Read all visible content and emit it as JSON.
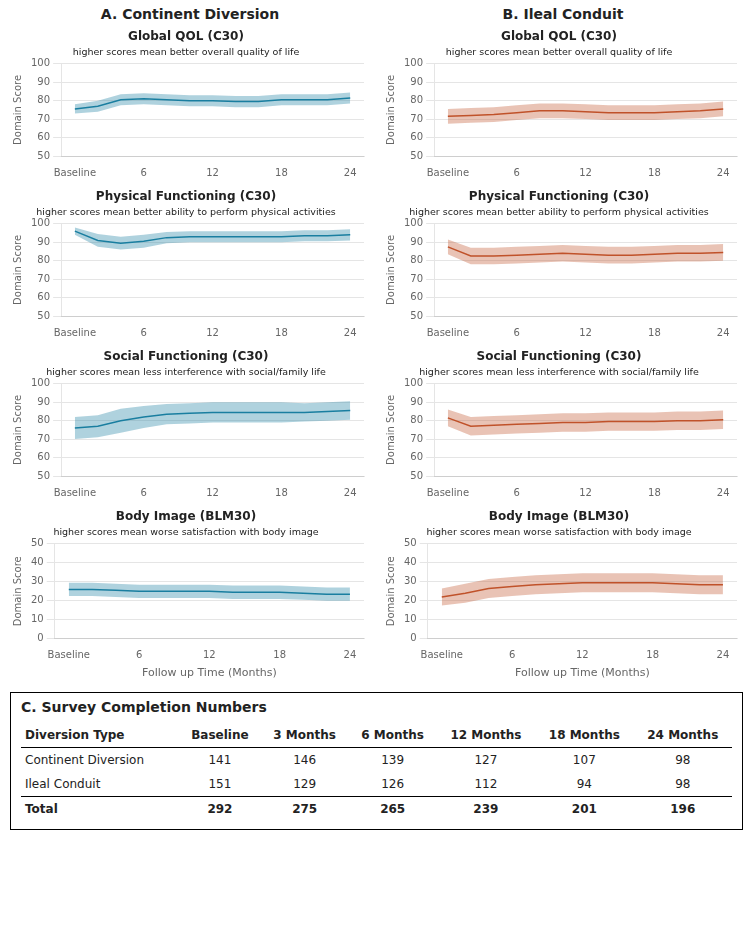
{
  "panel_titles": [
    "A. Continent Diversion",
    "B. Ileal Conduit"
  ],
  "chart_data": [
    {
      "type": "line",
      "title": "Global QOL (C30)",
      "subtitle": "higher scores mean better overall quality of life",
      "ylabel": "Domain Score",
      "color": "#1a7fa0",
      "x": [
        0,
        2,
        4,
        6,
        8,
        10,
        12,
        14,
        16,
        18,
        20,
        22,
        24
      ],
      "values": [
        75.5,
        77.0,
        80.5,
        81.0,
        80.5,
        80.0,
        80.0,
        79.5,
        79.5,
        80.5,
        80.5,
        80.5,
        81.5
      ],
      "upper": [
        78.0,
        80.0,
        83.5,
        84.0,
        83.5,
        83.0,
        83.0,
        82.5,
        82.5,
        83.5,
        83.5,
        83.5,
        84.5
      ],
      "lower": [
        73.0,
        74.0,
        77.5,
        78.0,
        77.5,
        77.0,
        77.0,
        76.5,
        76.5,
        77.5,
        77.5,
        77.5,
        78.5
      ],
      "xlim": [
        -1.2,
        25.2
      ],
      "xticks": [
        {
          "value": 0,
          "label": "Baseline"
        },
        6,
        12,
        18,
        24
      ],
      "ylim": [
        50,
        100
      ],
      "yticks": [
        50,
        60,
        70,
        80,
        90,
        100
      ],
      "grid": "y"
    },
    {
      "type": "line",
      "title": "Global QOL (C30)",
      "subtitle": "higher scores mean better overall quality of life",
      "ylabel": "Domain Score",
      "color": "#c0522a",
      "x": [
        0,
        2,
        4,
        6,
        8,
        10,
        12,
        14,
        16,
        18,
        20,
        22,
        24
      ],
      "values": [
        71.5,
        72.0,
        72.5,
        73.5,
        74.5,
        74.5,
        74.0,
        73.5,
        73.5,
        73.5,
        74.0,
        74.5,
        75.5
      ],
      "upper": [
        75.5,
        76.0,
        76.5,
        77.5,
        78.5,
        78.5,
        78.0,
        77.5,
        77.5,
        77.5,
        78.0,
        78.5,
        79.5
      ],
      "lower": [
        67.5,
        68.0,
        68.5,
        69.5,
        70.5,
        70.5,
        70.0,
        69.5,
        69.5,
        69.5,
        70.0,
        70.5,
        71.5
      ],
      "xlim": [
        -1.2,
        25.2
      ],
      "xticks": [
        {
          "value": 0,
          "label": "Baseline"
        },
        6,
        12,
        18,
        24
      ],
      "ylim": [
        50,
        100
      ],
      "yticks": [
        50,
        60,
        70,
        80,
        90,
        100
      ],
      "grid": "y"
    },
    {
      "type": "line",
      "title": "Physical Functioning (C30)",
      "subtitle": "higher scores mean better ability to perform physical activities",
      "ylabel": "Domain Score",
      "color": "#1a7fa0",
      "x": [
        0,
        2,
        4,
        6,
        8,
        10,
        12,
        14,
        16,
        18,
        20,
        22,
        24
      ],
      "values": [
        96.0,
        91.0,
        89.5,
        90.5,
        92.5,
        93.0,
        93.0,
        93.0,
        93.0,
        93.0,
        93.5,
        93.5,
        94.0
      ],
      "upper": [
        98.0,
        94.5,
        93.0,
        94.0,
        95.5,
        96.0,
        96.0,
        96.0,
        96.0,
        96.0,
        96.5,
        96.5,
        97.0
      ],
      "lower": [
        94.0,
        87.5,
        86.0,
        87.0,
        89.5,
        90.0,
        90.0,
        90.0,
        90.0,
        90.0,
        90.5,
        90.5,
        91.0
      ],
      "xlim": [
        -1.2,
        25.2
      ],
      "xticks": [
        {
          "value": 0,
          "label": "Baseline"
        },
        6,
        12,
        18,
        24
      ],
      "ylim": [
        50,
        100
      ],
      "yticks": [
        50,
        60,
        70,
        80,
        90,
        100
      ],
      "grid": "y"
    },
    {
      "type": "line",
      "title": "Physical Functioning (C30)",
      "subtitle": "higher scores mean better ability to perform physical activities",
      "ylabel": "Domain Score",
      "color": "#c0522a",
      "x": [
        0,
        2,
        4,
        6,
        8,
        10,
        12,
        14,
        16,
        18,
        20,
        22,
        24
      ],
      "values": [
        87.5,
        82.5,
        82.5,
        83.0,
        83.5,
        84.0,
        83.5,
        83.0,
        83.0,
        83.5,
        84.0,
        84.0,
        84.5
      ],
      "upper": [
        91.5,
        87.0,
        87.0,
        87.5,
        88.0,
        88.5,
        88.0,
        87.5,
        87.5,
        88.0,
        88.5,
        88.5,
        89.0
      ],
      "lower": [
        83.5,
        78.0,
        78.0,
        78.5,
        79.0,
        79.5,
        79.0,
        78.5,
        78.5,
        79.0,
        79.5,
        79.5,
        80.0
      ],
      "xlim": [
        -1.2,
        25.2
      ],
      "xticks": [
        {
          "value": 0,
          "label": "Baseline"
        },
        6,
        12,
        18,
        24
      ],
      "ylim": [
        50,
        100
      ],
      "yticks": [
        50,
        60,
        70,
        80,
        90,
        100
      ],
      "grid": "y"
    },
    {
      "type": "line",
      "title": "Social Functioning (C30)",
      "subtitle": "higher scores mean less interference with social/family life",
      "ylabel": "Domain Score",
      "color": "#1a7fa0",
      "x": [
        0,
        2,
        4,
        6,
        8,
        10,
        12,
        14,
        16,
        18,
        20,
        22,
        24
      ],
      "values": [
        76.0,
        77.0,
        80.0,
        82.0,
        83.5,
        84.0,
        84.5,
        84.5,
        84.5,
        84.5,
        84.5,
        85.0,
        85.5
      ],
      "upper": [
        82.0,
        83.0,
        86.5,
        88.0,
        89.0,
        89.5,
        90.0,
        90.0,
        90.0,
        90.0,
        89.5,
        90.0,
        90.5
      ],
      "lower": [
        70.0,
        71.0,
        73.5,
        76.0,
        78.0,
        78.5,
        79.0,
        79.0,
        79.0,
        79.0,
        79.5,
        80.0,
        80.5
      ],
      "xlim": [
        -1.2,
        25.2
      ],
      "xticks": [
        {
          "value": 0,
          "label": "Baseline"
        },
        6,
        12,
        18,
        24
      ],
      "ylim": [
        50,
        100
      ],
      "yticks": [
        50,
        60,
        70,
        80,
        90,
        100
      ],
      "grid": "y"
    },
    {
      "type": "line",
      "title": "Social Functioning (C30)",
      "subtitle": "higher scores mean less interference with social/family life",
      "ylabel": "Domain Score",
      "color": "#c0522a",
      "x": [
        0,
        2,
        4,
        6,
        8,
        10,
        12,
        14,
        16,
        18,
        20,
        22,
        24
      ],
      "values": [
        81.5,
        77.0,
        77.5,
        78.0,
        78.5,
        79.0,
        79.0,
        79.5,
        79.5,
        79.5,
        80.0,
        80.0,
        80.5
      ],
      "upper": [
        86.0,
        82.0,
        82.5,
        83.0,
        83.5,
        84.0,
        84.0,
        84.5,
        84.5,
        84.5,
        85.0,
        85.0,
        85.5
      ],
      "lower": [
        77.0,
        72.0,
        72.5,
        73.0,
        73.5,
        74.0,
        74.0,
        74.5,
        74.5,
        74.5,
        75.0,
        75.0,
        75.5
      ],
      "xlim": [
        -1.2,
        25.2
      ],
      "xticks": [
        {
          "value": 0,
          "label": "Baseline"
        },
        6,
        12,
        18,
        24
      ],
      "ylim": [
        50,
        100
      ],
      "yticks": [
        50,
        60,
        70,
        80,
        90,
        100
      ],
      "grid": "y"
    },
    {
      "type": "line",
      "title": "Body Image (BLM30)",
      "subtitle": "higher scores mean worse satisfaction with body image",
      "xlabel": "Follow up Time (Months)",
      "ylabel": "Domain Score",
      "color": "#1a7fa0",
      "x": [
        0,
        2,
        4,
        6,
        8,
        10,
        12,
        14,
        16,
        18,
        20,
        22,
        24
      ],
      "values": [
        26.0,
        26.0,
        25.5,
        25.0,
        25.0,
        25.0,
        25.0,
        24.5,
        24.5,
        24.5,
        24.0,
        23.5,
        23.5
      ],
      "upper": [
        29.5,
        29.5,
        29.0,
        28.5,
        28.5,
        28.5,
        28.5,
        28.0,
        28.0,
        28.0,
        27.5,
        27.0,
        27.0
      ],
      "lower": [
        22.5,
        22.5,
        22.0,
        21.5,
        21.5,
        21.5,
        21.5,
        21.0,
        21.0,
        21.0,
        20.5,
        20.0,
        20.0
      ],
      "xlim": [
        -1.2,
        25.2
      ],
      "xticks": [
        {
          "value": 0,
          "label": "Baseline"
        },
        6,
        12,
        18,
        24
      ],
      "ylim": [
        0,
        50
      ],
      "yticks": [
        0,
        10,
        20,
        30,
        40,
        50
      ],
      "grid": "y"
    },
    {
      "type": "line",
      "title": "Body Image (BLM30)",
      "subtitle": "higher scores mean worse satisfaction with body image",
      "xlabel": "Follow up Time (Months)",
      "ylabel": "Domain Score",
      "color": "#c0522a",
      "x": [
        0,
        2,
        4,
        6,
        8,
        10,
        12,
        14,
        16,
        18,
        20,
        22,
        24
      ],
      "values": [
        22.0,
        24.0,
        26.5,
        27.5,
        28.5,
        29.0,
        29.5,
        29.5,
        29.5,
        29.5,
        29.0,
        28.5,
        28.5
      ],
      "upper": [
        26.5,
        29.0,
        31.5,
        32.5,
        33.5,
        34.0,
        34.5,
        34.5,
        34.5,
        34.5,
        34.0,
        33.5,
        33.5
      ],
      "lower": [
        17.5,
        19.0,
        21.5,
        22.5,
        23.5,
        24.0,
        24.5,
        24.5,
        24.5,
        24.5,
        24.0,
        23.5,
        23.5
      ],
      "xlim": [
        -1.2,
        25.2
      ],
      "xticks": [
        {
          "value": 0,
          "label": "Baseline"
        },
        6,
        12,
        18,
        24
      ],
      "ylim": [
        0,
        50
      ],
      "yticks": [
        0,
        10,
        20,
        30,
        40,
        50
      ],
      "grid": "y"
    }
  ],
  "table": {
    "title": "C. Survey Completion Numbers",
    "headers": [
      "Diversion Type",
      "Baseline",
      "3 Months",
      "6 Months",
      "12 Months",
      "18 Months",
      "24 Months"
    ],
    "rows": [
      [
        "Continent Diversion",
        "141",
        "146",
        "139",
        "127",
        "107",
        "98"
      ],
      [
        "Ileal Conduit",
        "151",
        "129",
        "126",
        "112",
        "94",
        "98"
      ],
      [
        "Total",
        "292",
        "275",
        "265",
        "239",
        "201",
        "196"
      ]
    ]
  }
}
